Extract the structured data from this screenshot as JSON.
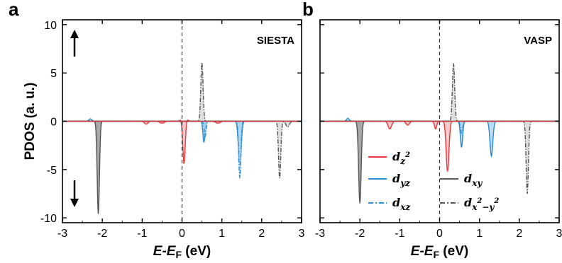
{
  "chart_data": [
    {
      "panel": "a",
      "type": "area",
      "code_label": "SIESTA",
      "ylabel": "PDOS (a. u.)",
      "xlabel_main": "E-E",
      "xlabel_sub": "F",
      "xlabel_unit": " (eV)",
      "xlim": [
        -3,
        3
      ],
      "ylim": [
        -10.5,
        10.5
      ],
      "xticks": [
        "-3",
        "-2",
        "-1",
        "0",
        "1",
        "2",
        "3"
      ],
      "yticks": [
        "10",
        "5",
        "0",
        "-5",
        "-10"
      ],
      "fermi_level": 0,
      "spin_arrows": [
        "up",
        "down"
      ],
      "series": [
        {
          "id": "dz2",
          "color": "#e8383d",
          "fill": "#f6b7b9",
          "style": "solid",
          "peaks": [
            {
              "x": 0.05,
              "y": -5.1,
              "w": 0.045
            },
            {
              "x": 0.05,
              "y": 0.7,
              "w": 0.08
            },
            {
              "x": -0.9,
              "y": -0.3,
              "w": 0.06
            },
            {
              "x": -0.5,
              "y": -0.2,
              "w": 0.08
            },
            {
              "x": 0.9,
              "y": -0.2,
              "w": 0.08
            }
          ]
        },
        {
          "id": "dyz",
          "color": "#2a8ad0",
          "fill": "#a7d3f0",
          "style": "solid",
          "peaks": [
            {
              "x": 0.55,
              "y": -2.2,
              "w": 0.035
            },
            {
              "x": 1.45,
              "y": -4.5,
              "w": 0.05
            },
            {
              "x": -2.3,
              "y": 0.25,
              "w": 0.05
            }
          ]
        },
        {
          "id": "dxz",
          "color": "#2a8ad0",
          "fill": "#a7d3f0",
          "style": "dashdot",
          "peaks": [
            {
              "x": 1.45,
              "y": -5.9,
              "w": 0.04
            },
            {
              "x": 0.58,
              "y": -1.6,
              "w": 0.035
            }
          ]
        },
        {
          "id": "dxy",
          "color": "#555555",
          "fill": "#8c8c8c",
          "style": "solid",
          "peaks": [
            {
              "x": -2.1,
              "y": -9.6,
              "w": 0.04
            }
          ]
        },
        {
          "id": "dx2y2",
          "color": "#555555",
          "fill": "#d4d4d4",
          "style": "dashdot",
          "peaks": [
            {
              "x": 0.5,
              "y": 6.1,
              "w": 0.04
            },
            {
              "x": 2.45,
              "y": -5.9,
              "w": 0.04
            },
            {
              "x": 2.65,
              "y": -0.6,
              "w": 0.06
            }
          ]
        }
      ]
    },
    {
      "panel": "b",
      "type": "area",
      "code_label": "VASP",
      "xlabel_main": "E-E",
      "xlabel_sub": "F",
      "xlabel_unit": " (eV)",
      "xlim": [
        -3,
        3
      ],
      "ylim": [
        -10.5,
        10.5
      ],
      "xticks": [
        "-3",
        "-2",
        "-1",
        "0",
        "1",
        "2",
        "3"
      ],
      "fermi_level": 0,
      "series": [
        {
          "id": "dz2",
          "color": "#e8383d",
          "fill": "#f6b7b9",
          "style": "solid",
          "peaks": [
            {
              "x": 0.2,
              "y": -5.2,
              "w": 0.05
            },
            {
              "x": -1.25,
              "y": -0.8,
              "w": 0.06
            },
            {
              "x": -0.8,
              "y": -0.4,
              "w": 0.06
            },
            {
              "x": -0.1,
              "y": -0.8,
              "w": 0.04
            }
          ]
        },
        {
          "id": "dyz",
          "color": "#2a8ad0",
          "fill": "#a7d3f0",
          "style": "solid",
          "peaks": [
            {
              "x": 0.55,
              "y": -2.7,
              "w": 0.04
            },
            {
              "x": 1.3,
              "y": -3.6,
              "w": 0.05
            },
            {
              "x": -2.3,
              "y": 0.3,
              "w": 0.05
            }
          ]
        },
        {
          "id": "dxz",
          "color": "#2a8ad0",
          "fill": "#a7d3f0",
          "style": "dashdot",
          "peaks": [
            {
              "x": 0.55,
              "y": -1.2,
              "w": 0.04
            }
          ]
        },
        {
          "id": "dxy",
          "color": "#555555",
          "fill": "#8c8c8c",
          "style": "solid",
          "peaks": [
            {
              "x": -2.0,
              "y": -8.5,
              "w": 0.045
            }
          ]
        },
        {
          "id": "dx2y2",
          "color": "#555555",
          "fill": "#d4d4d4",
          "style": "dashdot",
          "peaks": [
            {
              "x": 0.35,
              "y": 6.0,
              "w": 0.04
            },
            {
              "x": 2.2,
              "y": -7.5,
              "w": 0.04
            }
          ]
        }
      ]
    }
  ],
  "legend": [
    {
      "id": "dz2",
      "base": "d",
      "sub": "z",
      "sup": "2",
      "sub2": "",
      "color": "#e8383d",
      "style": "solid"
    },
    {
      "id": "dyz",
      "base": "d",
      "sub": "yz",
      "sup": "",
      "sub2": "",
      "color": "#2a8ad0",
      "style": "solid"
    },
    {
      "id": "dxy",
      "base": "d",
      "sub": "xy",
      "sup": "",
      "sub2": "",
      "color": "#555555",
      "style": "solid"
    },
    {
      "id": "dxz",
      "base": "d",
      "sub": "xz",
      "sup": "",
      "sub2": "",
      "color": "#2a8ad0",
      "style": "dashdot"
    },
    {
      "id": "dx2y2",
      "base": "d",
      "sub": "x",
      "sup": "2",
      "sub2": "−y",
      "sup2": "2",
      "color": "#555555",
      "style": "dashdot"
    }
  ]
}
